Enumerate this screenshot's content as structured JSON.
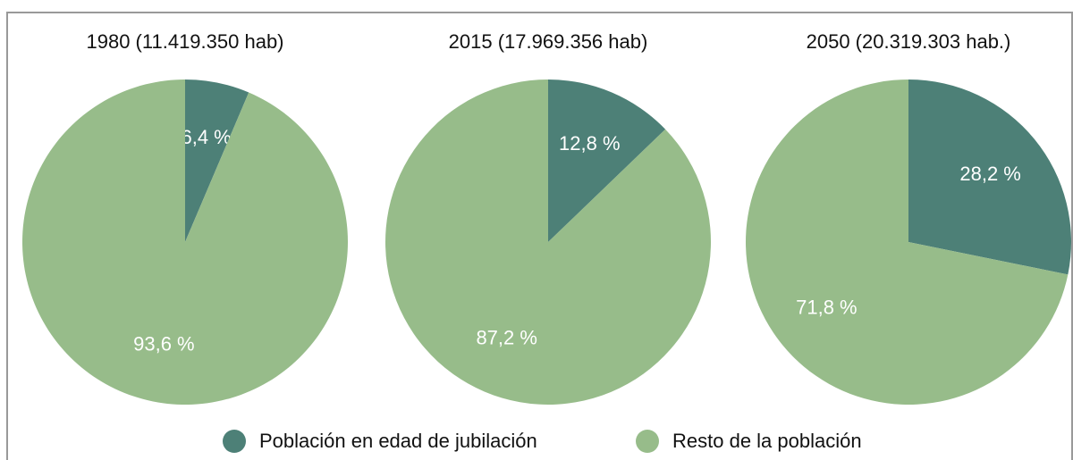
{
  "chart_data": [
    {
      "type": "pie",
      "title": "1980 (11.419.350 hab)",
      "categories": [
        "Población en edad de jubilación",
        "Resto de la población"
      ],
      "values": [
        6.4,
        93.6
      ],
      "value_labels": [
        "6,4 %",
        "93,6 %"
      ],
      "colors": [
        "#4d8077",
        "#97bc8a"
      ]
    },
    {
      "type": "pie",
      "title": "2015 (17.969.356 hab)",
      "categories": [
        "Población en edad de jubilación",
        "Resto de la población"
      ],
      "values": [
        12.8,
        87.2
      ],
      "value_labels": [
        "12,8 %",
        "87,2 %"
      ],
      "colors": [
        "#4d8077",
        "#97bc8a"
      ]
    },
    {
      "type": "pie",
      "title": "2050 (20.319.303 hab.)",
      "categories": [
        "Población en edad de jubilación",
        "Resto de la población"
      ],
      "values": [
        28.2,
        71.8
      ],
      "value_labels": [
        "28,2 %",
        "71,8 %"
      ],
      "colors": [
        "#4d8077",
        "#97bc8a"
      ]
    }
  ]
}
